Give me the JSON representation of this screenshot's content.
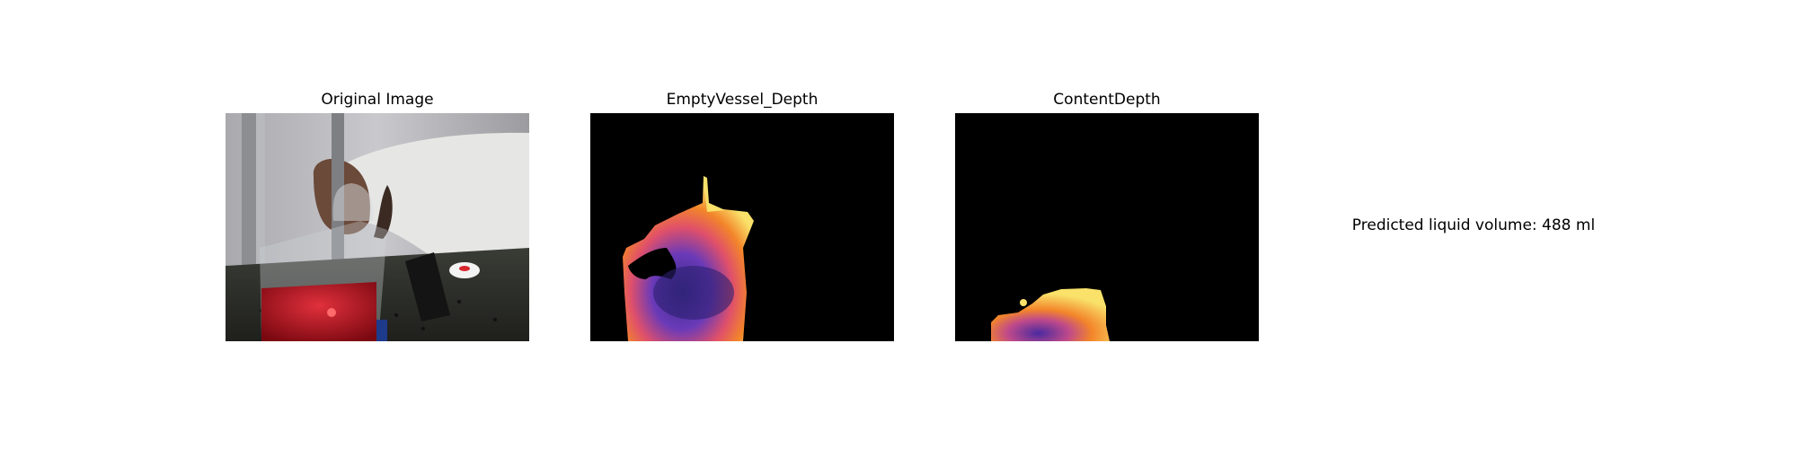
{
  "panels": [
    {
      "title": "Original Image"
    },
    {
      "title": "EmptyVessel_Depth"
    },
    {
      "title": "ContentDepth"
    }
  ],
  "prediction": {
    "text": "Predicted liquid volume: 488 ml"
  },
  "colors": {
    "background": "#ffffff",
    "depth_bg": "#000000",
    "liquid": "#c0101c",
    "depth_hot": "#f9e16a",
    "depth_mid": "#f36a2a",
    "depth_cool": "#4a2a9a"
  }
}
